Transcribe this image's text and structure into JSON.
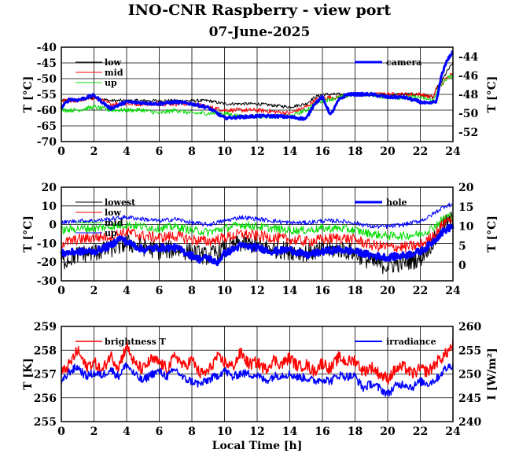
{
  "title": "INO-CNR Raspberry - view port",
  "subtitle": "07-June-2025",
  "colors": {
    "black": "#000000",
    "red": "#ff0000",
    "green": "#00dd00",
    "blue": "#0000ff"
  },
  "chart_data": [
    {
      "type": "line",
      "x_range": [
        0,
        24
      ],
      "xticks": [
        "0",
        "2",
        "4",
        "6",
        "8",
        "10",
        "12",
        "14",
        "16",
        "18",
        "20",
        "22",
        "24"
      ],
      "ylabel": "T [°C]",
      "ylim": [
        -70,
        -40
      ],
      "yticks": [
        "-40",
        "-45",
        "-50",
        "-55",
        "-60",
        "-65",
        "-70"
      ],
      "y2label": "T [°C]",
      "y2lim": [
        -53,
        -43
      ],
      "y2ticks": [
        "-44",
        "-46",
        "-48",
        "-50",
        "-52"
      ],
      "grid": true,
      "legend_left": [
        "low",
        "mid",
        "up"
      ],
      "legend_right": [
        "camera"
      ],
      "series": [
        {
          "name": "low",
          "color": "#000000",
          "axis": "left",
          "noise": 0.5,
          "width": 1,
          "x": [
            0,
            1,
            2,
            3,
            4,
            5,
            6,
            7,
            8,
            9,
            10,
            11,
            12,
            13,
            14,
            15,
            15.5,
            16,
            17,
            18,
            19,
            20,
            21,
            22,
            22.8,
            23,
            23.3,
            23.6,
            24
          ],
          "y": [
            -57,
            -57,
            -56,
            -57,
            -57,
            -57,
            -57,
            -57,
            -57,
            -57,
            -58,
            -58,
            -58,
            -58.5,
            -59,
            -58,
            -56,
            -55,
            -55,
            -55,
            -55,
            -55,
            -55,
            -55,
            -56,
            -53,
            -51,
            -48,
            -45
          ]
        },
        {
          "name": "mid",
          "color": "#ff0000",
          "axis": "left",
          "noise": 0.7,
          "width": 1,
          "x": [
            0,
            1,
            2,
            3,
            4,
            5,
            6,
            7,
            8,
            9,
            10,
            11,
            12,
            13,
            14,
            15,
            15.5,
            16,
            17,
            18,
            19,
            20,
            21,
            22,
            22.8,
            23,
            23.3,
            23.6,
            24
          ],
          "y": [
            -57,
            -57,
            -56,
            -58,
            -58,
            -58,
            -58,
            -58,
            -58,
            -59,
            -60,
            -60,
            -60,
            -60.5,
            -61,
            -59,
            -57,
            -56,
            -56,
            -55,
            -55,
            -55,
            -55,
            -55,
            -56,
            -53,
            -52,
            -50,
            -48
          ]
        },
        {
          "name": "up",
          "color": "#00dd00",
          "axis": "left",
          "noise": 0.7,
          "width": 1,
          "x": [
            0,
            1,
            2,
            3,
            4,
            5,
            6,
            7,
            8,
            9,
            10,
            11,
            12,
            13,
            14,
            15,
            15.5,
            16,
            17,
            18,
            19,
            20,
            21,
            22,
            22.8,
            23,
            23.3,
            23.6,
            24
          ],
          "y": [
            -60,
            -60,
            -59,
            -60,
            -60,
            -60,
            -61,
            -60,
            -61,
            -61,
            -61,
            -62,
            -62,
            -62,
            -62,
            -60,
            -58,
            -57,
            -56,
            -55,
            -55,
            -56,
            -56,
            -56,
            -57,
            -54,
            -52,
            -50,
            -49
          ]
        },
        {
          "name": "camera",
          "color": "#0000ff",
          "axis": "right",
          "noise": 0.15,
          "width": 3,
          "x": [
            0,
            0.5,
            1,
            2,
            3,
            4,
            5,
            6,
            7,
            8,
            9,
            10,
            11,
            12,
            13,
            14,
            15,
            15.5,
            16,
            16.5,
            17,
            17.5,
            18,
            19,
            20,
            21,
            22,
            22.5,
            23,
            23.3,
            23.6,
            24
          ],
          "y": [
            -49.4,
            -48.5,
            -48.6,
            -48.1,
            -49.5,
            -48.8,
            -48.9,
            -49,
            -48.8,
            -49,
            -49.4,
            -50.5,
            -50.4,
            -50.3,
            -50.3,
            -50.4,
            -50.6,
            -49,
            -48.3,
            -50.2,
            -48.6,
            -48,
            -48,
            -48,
            -48.3,
            -48.3,
            -48.8,
            -49,
            -48.7,
            -46,
            -44.5,
            -43.5
          ]
        }
      ]
    },
    {
      "type": "line",
      "x_range": [
        0,
        24
      ],
      "xticks": [
        "0",
        "2",
        "4",
        "6",
        "8",
        "10",
        "12",
        "14",
        "16",
        "18",
        "20",
        "22",
        "24"
      ],
      "ylabel": "T [°C]",
      "ylim": [
        -30,
        20
      ],
      "yticks": [
        "20",
        "10",
        "0",
        "-10",
        "-20",
        "-30"
      ],
      "y2label": "T [°C]",
      "y2lim": [
        -4,
        20
      ],
      "y2ticks": [
        "20",
        "15",
        "10",
        "5",
        "0"
      ],
      "grid": true,
      "legend_left": [
        "lowest",
        "low",
        "mid",
        "up"
      ],
      "legend_right": [
        "hole"
      ],
      "series": [
        {
          "name": "lowest",
          "color": "#000000",
          "axis": "left",
          "noise": 5,
          "width": 1,
          "x": [
            0,
            1,
            2,
            3,
            4,
            5,
            6,
            7,
            8,
            9,
            10,
            11,
            12,
            13,
            14,
            15,
            16,
            17,
            18,
            19,
            20,
            21,
            22,
            22.5,
            23,
            23.5,
            24
          ],
          "y": [
            -20,
            -16,
            -15,
            -13,
            -10,
            -12,
            -14,
            -13,
            -15,
            -17,
            -13,
            -10,
            -11,
            -13,
            -14,
            -15,
            -14,
            -13,
            -15,
            -20,
            -22,
            -20,
            -18,
            -12,
            -7,
            0,
            3
          ]
        },
        {
          "name": "low",
          "color": "#ff0000",
          "axis": "left",
          "noise": 3,
          "width": 1,
          "x": [
            0,
            1,
            2,
            3,
            4,
            5,
            6,
            7,
            8,
            9,
            10,
            11,
            12,
            13,
            14,
            15,
            16,
            17,
            18,
            19,
            20,
            21,
            22,
            22.5,
            23,
            23.5,
            24
          ],
          "y": [
            -10,
            -8,
            -7,
            -6,
            -4,
            -6,
            -7,
            -6,
            -8,
            -9,
            -7,
            -5,
            -6,
            -7,
            -8,
            -9,
            -8,
            -7,
            -8,
            -11,
            -12,
            -12,
            -11,
            -8,
            -4,
            2,
            4
          ]
        },
        {
          "name": "mid",
          "color": "#00dd00",
          "axis": "left",
          "noise": 2.2,
          "width": 1,
          "x": [
            0,
            1,
            2,
            3,
            4,
            5,
            6,
            7,
            8,
            9,
            10,
            11,
            12,
            13,
            14,
            15,
            16,
            17,
            18,
            19,
            20,
            21,
            22,
            22.5,
            23,
            23.5,
            24
          ],
          "y": [
            -3,
            -2,
            -2,
            -1,
            0,
            -1,
            -2,
            -1,
            -3,
            -4,
            -2,
            0,
            -1,
            -2,
            -3,
            -3,
            -2,
            -2,
            -3,
            -5,
            -6,
            -6,
            -5,
            -3,
            0,
            4,
            5
          ]
        },
        {
          "name": "up",
          "color": "#0000ff",
          "axis": "left",
          "noise": 1.2,
          "width": 1,
          "x": [
            0,
            1,
            2,
            3,
            4,
            5,
            6,
            7,
            8,
            9,
            10,
            11,
            12,
            13,
            14,
            15,
            16,
            17,
            18,
            19,
            20,
            21,
            22,
            22.5,
            23,
            23.5,
            24
          ],
          "y": [
            1,
            2,
            2,
            3,
            4,
            3,
            2,
            3,
            1,
            0,
            2,
            4,
            3,
            2,
            1,
            1,
            2,
            2,
            1,
            -1,
            -1,
            0,
            2,
            4,
            7,
            10,
            11
          ]
        },
        {
          "name": "hole",
          "color": "#0000ff",
          "axis": "right",
          "noise": 0.9,
          "width": 3,
          "x": [
            0,
            1,
            2,
            3,
            3.6,
            4,
            5,
            6,
            7,
            8,
            8.5,
            9,
            9.5,
            10,
            11,
            12,
            13,
            14,
            15,
            16,
            17,
            18,
            19,
            20,
            21,
            22,
            22.5,
            23,
            23.5,
            24
          ],
          "y": [
            3,
            3.5,
            3.5,
            5,
            7,
            6,
            4,
            4.5,
            4.5,
            2.5,
            1.5,
            2,
            0.5,
            3,
            5,
            4.5,
            3.5,
            4,
            2.5,
            3.5,
            4,
            3.5,
            2.5,
            2,
            2.5,
            3.5,
            5,
            7,
            9,
            10
          ]
        }
      ]
    },
    {
      "type": "line",
      "x_range": [
        0,
        24
      ],
      "xticks": [
        "0",
        "2",
        "4",
        "6",
        "8",
        "10",
        "12",
        "14",
        "16",
        "18",
        "20",
        "22",
        "24"
      ],
      "xlabel": "Local Time [h]",
      "ylabel": "T [K]",
      "ylim": [
        255,
        259
      ],
      "yticks": [
        "259",
        "258",
        "257",
        "256",
        "255"
      ],
      "y2label": "I [W/m²]",
      "y2lim": [
        240,
        260
      ],
      "y2ticks": [
        "260",
        "255",
        "250",
        "245",
        "240"
      ],
      "grid": true,
      "legend_left": [
        "brightness T"
      ],
      "legend_right": [
        "irradiance"
      ],
      "series": [
        {
          "name": "brightness T",
          "color": "#ff0000",
          "axis": "left",
          "noise": 0.25,
          "width": 1.5,
          "x": [
            0,
            0.5,
            1,
            1.5,
            2,
            2.5,
            3,
            3.5,
            4,
            4.5,
            5,
            5.5,
            6,
            6.5,
            7,
            7.5,
            8,
            8.5,
            9,
            9.5,
            10,
            10.5,
            11,
            11.5,
            12,
            12.5,
            13,
            13.5,
            14,
            14.5,
            15,
            15.5,
            16,
            16.5,
            17,
            17.5,
            18,
            18.5,
            19,
            19.5,
            20,
            20.5,
            21,
            21.5,
            22,
            22.5,
            23,
            23.5,
            24
          ],
          "y": [
            257,
            257.4,
            258,
            257.3,
            257.5,
            257.1,
            257.8,
            257.3,
            258.2,
            257.4,
            257.2,
            257.6,
            257.5,
            257.2,
            257.8,
            257.3,
            257.6,
            257,
            257.1,
            257.7,
            257.5,
            257.3,
            257.9,
            257.4,
            257.5,
            257.2,
            257.6,
            257.4,
            257.7,
            257.3,
            257.4,
            257.1,
            257.5,
            257.2,
            257.7,
            257.5,
            257.6,
            257.1,
            257.3,
            257,
            256.8,
            257.2,
            257.3,
            257,
            257.2,
            257.1,
            257.5,
            257.8,
            258.2
          ]
        },
        {
          "name": "irradiance",
          "color": "#0000ff",
          "axis": "right",
          "noise": 0.9,
          "width": 1.5,
          "x": [
            0,
            0.5,
            1,
            1.5,
            2,
            2.5,
            3,
            3.5,
            4,
            4.5,
            5,
            5.5,
            6,
            6.5,
            7,
            7.5,
            8,
            8.5,
            9,
            9.5,
            10,
            10.5,
            11,
            11.5,
            12,
            12.5,
            13,
            13.5,
            14,
            14.5,
            15,
            15.5,
            16,
            16.5,
            17,
            17.5,
            18,
            18.5,
            19,
            19.5,
            20,
            20.5,
            21,
            21.5,
            22,
            22.5,
            23,
            23.5,
            24
          ],
          "y": [
            248,
            250.5,
            251.5,
            249.5,
            250.2,
            249.7,
            251,
            249.5,
            252,
            249.8,
            248.5,
            250,
            250.5,
            249.5,
            251,
            249,
            248.5,
            247.8,
            248.8,
            249.5,
            250.8,
            249.3,
            250.2,
            250,
            249.7,
            248.6,
            249.5,
            249.8,
            250,
            249.3,
            249.2,
            248.5,
            249,
            248.5,
            249.8,
            249.5,
            249.5,
            247,
            248,
            247,
            245.8,
            247.5,
            248,
            247.2,
            248.4,
            248,
            249,
            251,
            252
          ]
        }
      ]
    }
  ]
}
